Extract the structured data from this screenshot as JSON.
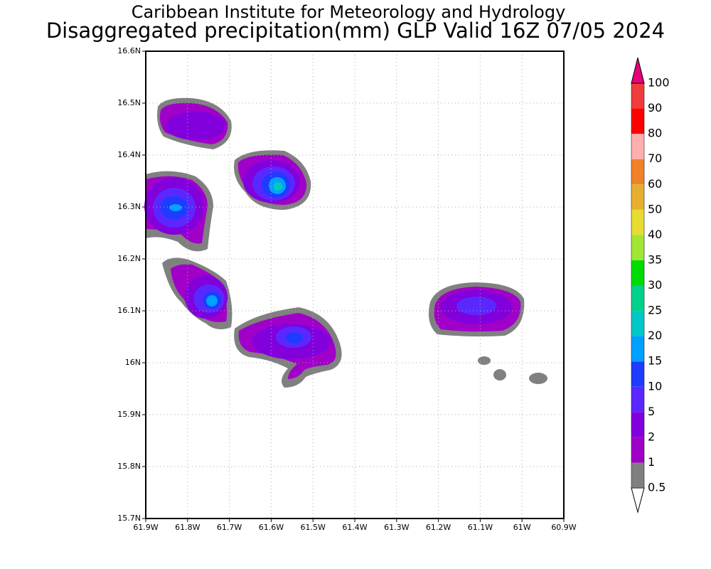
{
  "chart_data": {
    "type": "contour",
    "title": "Caribbean Institute for Meteorology and Hydrology",
    "subtitle": "Disaggregated precipitation(mm) GLP Valid 16Z 07/05 2024",
    "xlim": [
      -61.9,
      -60.9
    ],
    "ylim": [
      15.7,
      16.6
    ],
    "xticks": [
      {
        "value": -61.9,
        "label": "61.9W"
      },
      {
        "value": -61.8,
        "label": "61.8W"
      },
      {
        "value": -61.7,
        "label": "61.7W"
      },
      {
        "value": -61.6,
        "label": "61.6W"
      },
      {
        "value": -61.5,
        "label": "61.5W"
      },
      {
        "value": -61.4,
        "label": "61.4W"
      },
      {
        "value": -61.3,
        "label": "61.3W"
      },
      {
        "value": -61.2,
        "label": "61.2W"
      },
      {
        "value": -61.1,
        "label": "61.1W"
      },
      {
        "value": -61.0,
        "label": "61W"
      },
      {
        "value": -60.9,
        "label": "60.9W"
      }
    ],
    "yticks": [
      {
        "value": 15.7,
        "label": "15.7N"
      },
      {
        "value": 15.8,
        "label": "15.8N"
      },
      {
        "value": 15.9,
        "label": "15.9N"
      },
      {
        "value": 16.0,
        "label": "16N"
      },
      {
        "value": 16.1,
        "label": "16.1N"
      },
      {
        "value": 16.2,
        "label": "16.2N"
      },
      {
        "value": 16.3,
        "label": "16.3N"
      },
      {
        "value": 16.4,
        "label": "16.4N"
      },
      {
        "value": 16.5,
        "label": "16.5N"
      },
      {
        "value": 16.6,
        "label": "16.6N"
      }
    ],
    "grid": true,
    "levels": [
      0.5,
      1,
      2,
      5,
      10,
      15,
      20,
      25,
      30,
      35,
      40,
      50,
      60,
      70,
      80,
      90,
      100
    ],
    "colors": [
      "#ffffff",
      "#808080",
      "#a000c8",
      "#8200dc",
      "#5a28ff",
      "#1e3cff",
      "#00a0ff",
      "#00c8c8",
      "#00d28c",
      "#00dc00",
      "#a0e632",
      "#e6dc32",
      "#e6af2d",
      "#f08228",
      "#ffafaf",
      "#ff0000",
      "#f03c3c",
      "#e6007a"
    ]
  }
}
